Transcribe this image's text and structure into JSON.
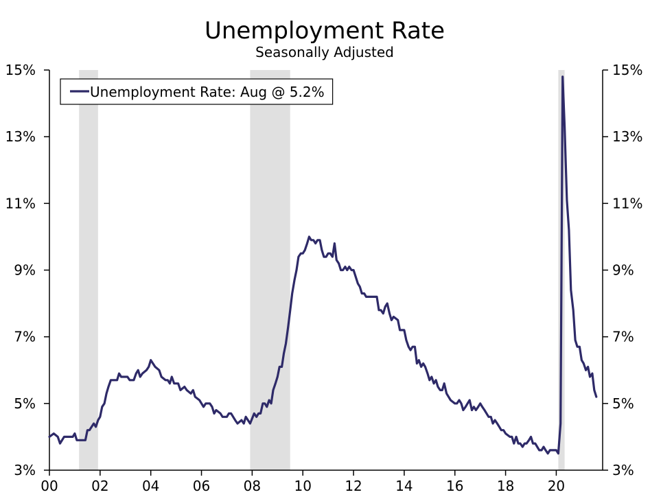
{
  "chart_data": {
    "type": "line",
    "title": "Unemployment Rate",
    "subtitle": "Seasonally Adjusted",
    "xlabel": "",
    "ylabel": "",
    "xlim": [
      2000.0,
      2021.83
    ],
    "ylim": [
      3,
      15
    ],
    "x_ticks": [
      {
        "value": 2000,
        "label": "00"
      },
      {
        "value": 2002,
        "label": "02"
      },
      {
        "value": 2004,
        "label": "04"
      },
      {
        "value": 2006,
        "label": "06"
      },
      {
        "value": 2008,
        "label": "08"
      },
      {
        "value": 2010,
        "label": "10"
      },
      {
        "value": 2012,
        "label": "12"
      },
      {
        "value": 2014,
        "label": "14"
      },
      {
        "value": 2016,
        "label": "16"
      },
      {
        "value": 2018,
        "label": "18"
      },
      {
        "value": 2020,
        "label": "20"
      }
    ],
    "y_ticks": [
      {
        "value": 3,
        "label": "3%"
      },
      {
        "value": 5,
        "label": "5%"
      },
      {
        "value": 7,
        "label": "7%"
      },
      {
        "value": 9,
        "label": "9%"
      },
      {
        "value": 11,
        "label": "11%"
      },
      {
        "value": 13,
        "label": "13%"
      },
      {
        "value": 15,
        "label": "15%"
      }
    ],
    "recessions": [
      {
        "start": 2001.17,
        "end": 2001.92
      },
      {
        "start": 2007.92,
        "end": 2009.5
      },
      {
        "start": 2020.08,
        "end": 2020.33
      }
    ],
    "grid": false,
    "legend": "top-left",
    "line_color": "#2e2a68",
    "recession_color": "#e0e0e0",
    "series": [
      {
        "name": "Unemployment Rate: Aug @ 5.2%",
        "points": [
          [
            2000.0,
            4.0
          ],
          [
            2000.17,
            4.1
          ],
          [
            2000.33,
            4.0
          ],
          [
            2000.42,
            3.8
          ],
          [
            2000.58,
            4.0
          ],
          [
            2000.75,
            4.0
          ],
          [
            2000.92,
            4.0
          ],
          [
            2001.0,
            4.1
          ],
          [
            2001.08,
            3.9
          ],
          [
            2001.33,
            3.9
          ],
          [
            2001.42,
            3.9
          ],
          [
            2001.5,
            4.2
          ],
          [
            2001.58,
            4.2
          ],
          [
            2001.75,
            4.4
          ],
          [
            2001.83,
            4.3
          ],
          [
            2001.92,
            4.5
          ],
          [
            2002.0,
            4.6
          ],
          [
            2002.08,
            4.9
          ],
          [
            2002.17,
            5.0
          ],
          [
            2002.25,
            5.3
          ],
          [
            2002.33,
            5.5
          ],
          [
            2002.42,
            5.7
          ],
          [
            2002.67,
            5.7
          ],
          [
            2002.75,
            5.9
          ],
          [
            2002.83,
            5.8
          ],
          [
            2003.0,
            5.8
          ],
          [
            2003.08,
            5.8
          ],
          [
            2003.17,
            5.7
          ],
          [
            2003.33,
            5.7
          ],
          [
            2003.42,
            5.9
          ],
          [
            2003.5,
            6.0
          ],
          [
            2003.58,
            5.8
          ],
          [
            2003.67,
            5.9
          ],
          [
            2003.83,
            6.0
          ],
          [
            2003.92,
            6.1
          ],
          [
            2004.0,
            6.3
          ],
          [
            2004.17,
            6.1
          ],
          [
            2004.33,
            6.0
          ],
          [
            2004.42,
            5.8
          ],
          [
            2004.58,
            5.7
          ],
          [
            2004.67,
            5.7
          ],
          [
            2004.75,
            5.6
          ],
          [
            2004.83,
            5.8
          ],
          [
            2004.92,
            5.6
          ],
          [
            2005.08,
            5.6
          ],
          [
            2005.17,
            5.4
          ],
          [
            2005.33,
            5.5
          ],
          [
            2005.42,
            5.4
          ],
          [
            2005.58,
            5.3
          ],
          [
            2005.67,
            5.4
          ],
          [
            2005.75,
            5.2
          ],
          [
            2005.92,
            5.1
          ],
          [
            2006.08,
            4.9
          ],
          [
            2006.17,
            5.0
          ],
          [
            2006.25,
            5.0
          ],
          [
            2006.33,
            5.0
          ],
          [
            2006.42,
            4.9
          ],
          [
            2006.5,
            4.7
          ],
          [
            2006.58,
            4.8
          ],
          [
            2006.75,
            4.7
          ],
          [
            2006.83,
            4.6
          ],
          [
            2007.0,
            4.6
          ],
          [
            2007.08,
            4.7
          ],
          [
            2007.17,
            4.7
          ],
          [
            2007.33,
            4.5
          ],
          [
            2007.42,
            4.4
          ],
          [
            2007.58,
            4.5
          ],
          [
            2007.67,
            4.4
          ],
          [
            2007.75,
            4.6
          ],
          [
            2007.92,
            4.4
          ],
          [
            2008.08,
            4.7
          ],
          [
            2008.17,
            4.6
          ],
          [
            2008.25,
            4.7
          ],
          [
            2008.33,
            4.7
          ],
          [
            2008.42,
            5.0
          ],
          [
            2008.5,
            5.0
          ],
          [
            2008.58,
            4.9
          ],
          [
            2008.67,
            5.1
          ],
          [
            2008.75,
            5.0
          ],
          [
            2008.83,
            5.4
          ],
          [
            2008.92,
            5.6
          ],
          [
            2009.0,
            5.8
          ],
          [
            2009.08,
            6.1
          ],
          [
            2009.17,
            6.1
          ],
          [
            2009.25,
            6.5
          ],
          [
            2009.33,
            6.8
          ],
          [
            2009.42,
            7.3
          ],
          [
            2009.5,
            7.8
          ],
          [
            2009.58,
            8.3
          ],
          [
            2009.67,
            8.7
          ],
          [
            2009.75,
            9.0
          ],
          [
            2009.83,
            9.4
          ],
          [
            2009.92,
            9.5
          ],
          [
            2010.0,
            9.5
          ],
          [
            2010.08,
            9.6
          ],
          [
            2010.17,
            9.8
          ],
          [
            2010.25,
            10.0
          ],
          [
            2010.33,
            9.9
          ],
          [
            2010.42,
            9.9
          ],
          [
            2010.5,
            9.8
          ],
          [
            2010.58,
            9.9
          ],
          [
            2010.67,
            9.9
          ],
          [
            2010.75,
            9.6
          ],
          [
            2010.83,
            9.4
          ],
          [
            2010.92,
            9.4
          ],
          [
            2011.0,
            9.5
          ],
          [
            2011.08,
            9.5
          ],
          [
            2011.17,
            9.4
          ],
          [
            2011.25,
            9.8
          ],
          [
            2011.33,
            9.3
          ],
          [
            2011.42,
            9.2
          ],
          [
            2011.5,
            9.0
          ],
          [
            2011.58,
            9.0
          ],
          [
            2011.67,
            9.1
          ],
          [
            2011.75,
            9.0
          ],
          [
            2011.83,
            9.1
          ],
          [
            2011.92,
            9.0
          ],
          [
            2012.0,
            9.0
          ],
          [
            2012.17,
            8.6
          ],
          [
            2012.25,
            8.5
          ],
          [
            2012.33,
            8.3
          ],
          [
            2012.42,
            8.3
          ],
          [
            2012.5,
            8.2
          ],
          [
            2012.58,
            8.2
          ],
          [
            2012.83,
            8.2
          ],
          [
            2012.92,
            8.2
          ],
          [
            2013.0,
            7.8
          ],
          [
            2013.08,
            7.8
          ],
          [
            2013.17,
            7.7
          ],
          [
            2013.25,
            7.9
          ],
          [
            2013.33,
            8.0
          ],
          [
            2013.42,
            7.7
          ],
          [
            2013.5,
            7.5
          ],
          [
            2013.58,
            7.6
          ],
          [
            2013.75,
            7.5
          ],
          [
            2013.83,
            7.2
          ],
          [
            2013.92,
            7.2
          ],
          [
            2014.0,
            7.2
          ],
          [
            2014.08,
            6.9
          ],
          [
            2014.17,
            6.7
          ],
          [
            2014.25,
            6.6
          ],
          [
            2014.33,
            6.7
          ],
          [
            2014.42,
            6.7
          ],
          [
            2014.5,
            6.2
          ],
          [
            2014.58,
            6.3
          ],
          [
            2014.67,
            6.1
          ],
          [
            2014.75,
            6.2
          ],
          [
            2014.83,
            6.1
          ],
          [
            2014.92,
            5.9
          ],
          [
            2015.0,
            5.7
          ],
          [
            2015.08,
            5.8
          ],
          [
            2015.17,
            5.6
          ],
          [
            2015.25,
            5.7
          ],
          [
            2015.33,
            5.5
          ],
          [
            2015.42,
            5.4
          ],
          [
            2015.5,
            5.4
          ],
          [
            2015.58,
            5.6
          ],
          [
            2015.67,
            5.3
          ],
          [
            2015.75,
            5.2
          ],
          [
            2015.83,
            5.1
          ],
          [
            2016.0,
            5.0
          ],
          [
            2016.08,
            5.0
          ],
          [
            2016.17,
            5.1
          ],
          [
            2016.25,
            5.0
          ],
          [
            2016.33,
            4.8
          ],
          [
            2016.42,
            4.9
          ],
          [
            2016.5,
            5.0
          ],
          [
            2016.58,
            5.1
          ],
          [
            2016.67,
            4.8
          ],
          [
            2016.75,
            4.9
          ],
          [
            2016.83,
            4.8
          ],
          [
            2016.92,
            4.9
          ],
          [
            2017.0,
            5.0
          ],
          [
            2017.08,
            4.9
          ],
          [
            2017.17,
            4.8
          ],
          [
            2017.25,
            4.7
          ],
          [
            2017.33,
            4.6
          ],
          [
            2017.42,
            4.6
          ],
          [
            2017.5,
            4.4
          ],
          [
            2017.58,
            4.5
          ],
          [
            2017.67,
            4.4
          ],
          [
            2017.75,
            4.3
          ],
          [
            2017.83,
            4.2
          ],
          [
            2017.92,
            4.2
          ],
          [
            2018.0,
            4.1
          ],
          [
            2018.17,
            4.0
          ],
          [
            2018.25,
            4.0
          ],
          [
            2018.33,
            3.8
          ],
          [
            2018.42,
            4.0
          ],
          [
            2018.5,
            3.8
          ],
          [
            2018.58,
            3.8
          ],
          [
            2018.67,
            3.7
          ],
          [
            2018.75,
            3.8
          ],
          [
            2018.83,
            3.8
          ],
          [
            2018.92,
            3.9
          ],
          [
            2019.0,
            4.0
          ],
          [
            2019.08,
            3.8
          ],
          [
            2019.17,
            3.8
          ],
          [
            2019.25,
            3.7
          ],
          [
            2019.33,
            3.6
          ],
          [
            2019.42,
            3.6
          ],
          [
            2019.5,
            3.7
          ],
          [
            2019.58,
            3.6
          ],
          [
            2019.67,
            3.5
          ],
          [
            2019.75,
            3.6
          ],
          [
            2019.83,
            3.6
          ],
          [
            2019.92,
            3.6
          ],
          [
            2020.0,
            3.6
          ],
          [
            2020.08,
            3.5
          ],
          [
            2020.17,
            4.4
          ],
          [
            2020.25,
            14.8
          ],
          [
            2020.33,
            13.3
          ],
          [
            2020.42,
            11.1
          ],
          [
            2020.5,
            10.2
          ],
          [
            2020.58,
            8.4
          ],
          [
            2020.67,
            7.8
          ],
          [
            2020.75,
            6.9
          ],
          [
            2020.83,
            6.7
          ],
          [
            2020.92,
            6.7
          ],
          [
            2021.0,
            6.3
          ],
          [
            2021.08,
            6.2
          ],
          [
            2021.17,
            6.0
          ],
          [
            2021.25,
            6.1
          ],
          [
            2021.33,
            5.8
          ],
          [
            2021.42,
            5.9
          ],
          [
            2021.5,
            5.4
          ],
          [
            2021.58,
            5.2
          ]
        ]
      }
    ]
  }
}
